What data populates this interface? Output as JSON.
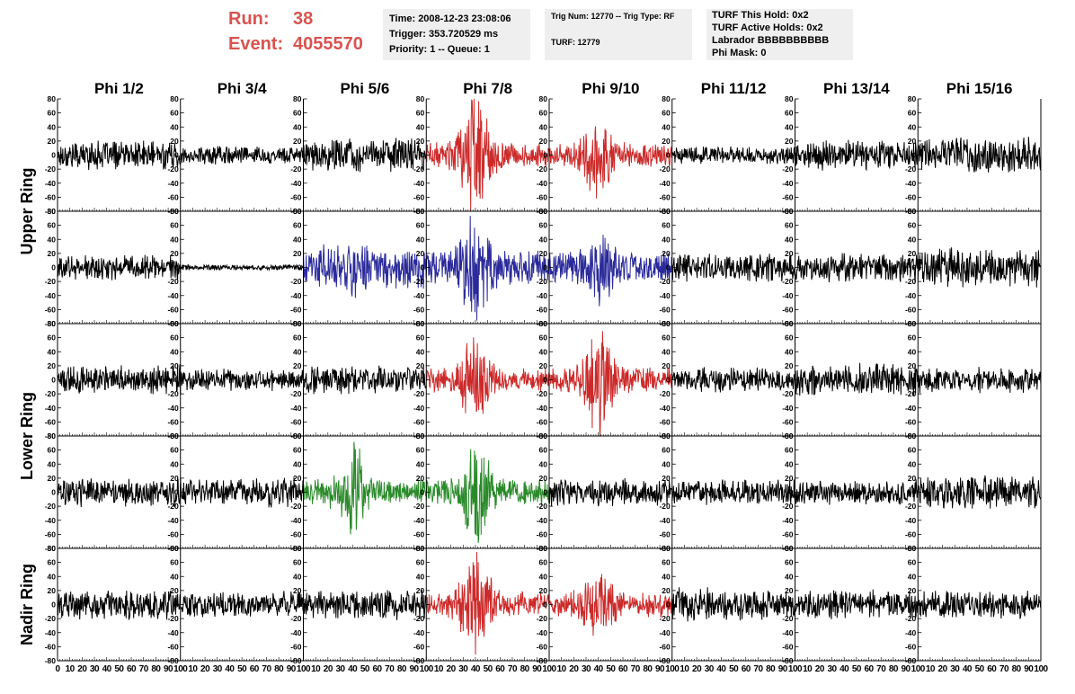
{
  "header": {
    "run_label": "Run:",
    "run_value": "38",
    "event_label": "Event:",
    "event_value": "4055570",
    "time_line": "Time: 2008-12-23 23:08:06",
    "trigger_line": "Trigger: 353.720529 ms",
    "priority_line": "Priority: 1 -- Queue: 1",
    "trig_num_line": "Trig Num: 12770 -- Trig Type: RF",
    "turf_line": "TURF: 12779",
    "turf_hold_line": "TURF This Hold: 0x2",
    "turf_active_line": "TURF Active Holds: 0x2",
    "labrador_line": "Labrador BBBBBBBBBB",
    "phi_mask_line": "Phi Mask: 0",
    "accent_color": "#d9534f"
  },
  "chart_data": {
    "type": "line",
    "columns": [
      "Phi 1/2",
      "Phi 3/4",
      "Phi 5/6",
      "Phi 7/8",
      "Phi 9/10",
      "Phi 11/12",
      "Phi 13/14",
      "Phi 15/16"
    ],
    "rows": [
      "Upper Ring",
      "Upper Ring",
      "Lower Ring",
      "Lower Ring",
      "Nadir Ring"
    ],
    "row_labels": [
      {
        "text": "Upper Ring",
        "rows": [
          0,
          1
        ]
      },
      {
        "text": "Lower Ring",
        "rows": [
          2,
          3
        ]
      },
      {
        "text": "Nadir Ring",
        "rows": [
          4,
          4
        ]
      }
    ],
    "xlim": [
      0,
      100
    ],
    "ylim": [
      -80,
      80
    ],
    "y_ticks": [
      80,
      60,
      40,
      20,
      0,
      -20,
      -40,
      -60,
      -80
    ],
    "x_tick_labels": [
      "0",
      "10",
      "20",
      "30",
      "40",
      "50",
      "60",
      "70",
      "80",
      "90",
      "100"
    ],
    "colors": {
      "default": "#000000",
      "red": "#cc2a2a",
      "blue": "#2a2a9a",
      "green": "#2a8a2a"
    },
    "panels": [
      {
        "row": 0,
        "col": 0,
        "color": "default",
        "amp": 16,
        "pulse": 0
      },
      {
        "row": 0,
        "col": 1,
        "color": "default",
        "amp": 10,
        "pulse": 0
      },
      {
        "row": 0,
        "col": 2,
        "color": "default",
        "amp": 18,
        "pulse": 0
      },
      {
        "row": 0,
        "col": 3,
        "color": "red",
        "amp": 14,
        "pulse": 60
      },
      {
        "row": 0,
        "col": 4,
        "color": "red",
        "amp": 14,
        "pulse": 35
      },
      {
        "row": 0,
        "col": 5,
        "color": "default",
        "amp": 10,
        "pulse": 0
      },
      {
        "row": 0,
        "col": 6,
        "color": "default",
        "amp": 16,
        "pulse": 0
      },
      {
        "row": 0,
        "col": 7,
        "color": "default",
        "amp": 20,
        "pulse": 0
      },
      {
        "row": 1,
        "col": 0,
        "color": "default",
        "amp": 14,
        "pulse": 0
      },
      {
        "row": 1,
        "col": 1,
        "color": "default",
        "amp": 3,
        "pulse": 0
      },
      {
        "row": 1,
        "col": 2,
        "color": "blue",
        "amp": 24,
        "pulse": 10
      },
      {
        "row": 1,
        "col": 3,
        "color": "blue",
        "amp": 18,
        "pulse": 45
      },
      {
        "row": 1,
        "col": 4,
        "color": "blue",
        "amp": 18,
        "pulse": 25
      },
      {
        "row": 1,
        "col": 5,
        "color": "default",
        "amp": 16,
        "pulse": 0
      },
      {
        "row": 1,
        "col": 6,
        "color": "default",
        "amp": 16,
        "pulse": 0
      },
      {
        "row": 1,
        "col": 7,
        "color": "default",
        "amp": 22,
        "pulse": 0
      },
      {
        "row": 2,
        "col": 0,
        "color": "default",
        "amp": 16,
        "pulse": 0
      },
      {
        "row": 2,
        "col": 1,
        "color": "default",
        "amp": 12,
        "pulse": 0
      },
      {
        "row": 2,
        "col": 2,
        "color": "default",
        "amp": 16,
        "pulse": 0
      },
      {
        "row": 2,
        "col": 3,
        "color": "red",
        "amp": 14,
        "pulse": 40
      },
      {
        "row": 2,
        "col": 4,
        "color": "red",
        "amp": 14,
        "pulse": 45
      },
      {
        "row": 2,
        "col": 5,
        "color": "default",
        "amp": 14,
        "pulse": 0
      },
      {
        "row": 2,
        "col": 6,
        "color": "default",
        "amp": 18,
        "pulse": 0
      },
      {
        "row": 2,
        "col": 7,
        "color": "default",
        "amp": 14,
        "pulse": 0
      },
      {
        "row": 3,
        "col": 0,
        "color": "default",
        "amp": 16,
        "pulse": 0
      },
      {
        "row": 3,
        "col": 1,
        "color": "default",
        "amp": 16,
        "pulse": 0
      },
      {
        "row": 3,
        "col": 2,
        "color": "green",
        "amp": 14,
        "pulse": 40
      },
      {
        "row": 3,
        "col": 3,
        "color": "green",
        "amp": 14,
        "pulse": 45
      },
      {
        "row": 3,
        "col": 4,
        "color": "default",
        "amp": 16,
        "pulse": 0
      },
      {
        "row": 3,
        "col": 5,
        "color": "default",
        "amp": 14,
        "pulse": 0
      },
      {
        "row": 3,
        "col": 6,
        "color": "default",
        "amp": 14,
        "pulse": 0
      },
      {
        "row": 3,
        "col": 7,
        "color": "default",
        "amp": 18,
        "pulse": 0
      },
      {
        "row": 4,
        "col": 0,
        "color": "default",
        "amp": 16,
        "pulse": 0
      },
      {
        "row": 4,
        "col": 1,
        "color": "default",
        "amp": 14,
        "pulse": 0
      },
      {
        "row": 4,
        "col": 2,
        "color": "default",
        "amp": 16,
        "pulse": 0
      },
      {
        "row": 4,
        "col": 3,
        "color": "red",
        "amp": 14,
        "pulse": 50
      },
      {
        "row": 4,
        "col": 4,
        "color": "red",
        "amp": 14,
        "pulse": 30
      },
      {
        "row": 4,
        "col": 5,
        "color": "default",
        "amp": 18,
        "pulse": 0
      },
      {
        "row": 4,
        "col": 6,
        "color": "default",
        "amp": 16,
        "pulse": 0
      },
      {
        "row": 4,
        "col": 7,
        "color": "default",
        "amp": 16,
        "pulse": 0
      }
    ]
  }
}
